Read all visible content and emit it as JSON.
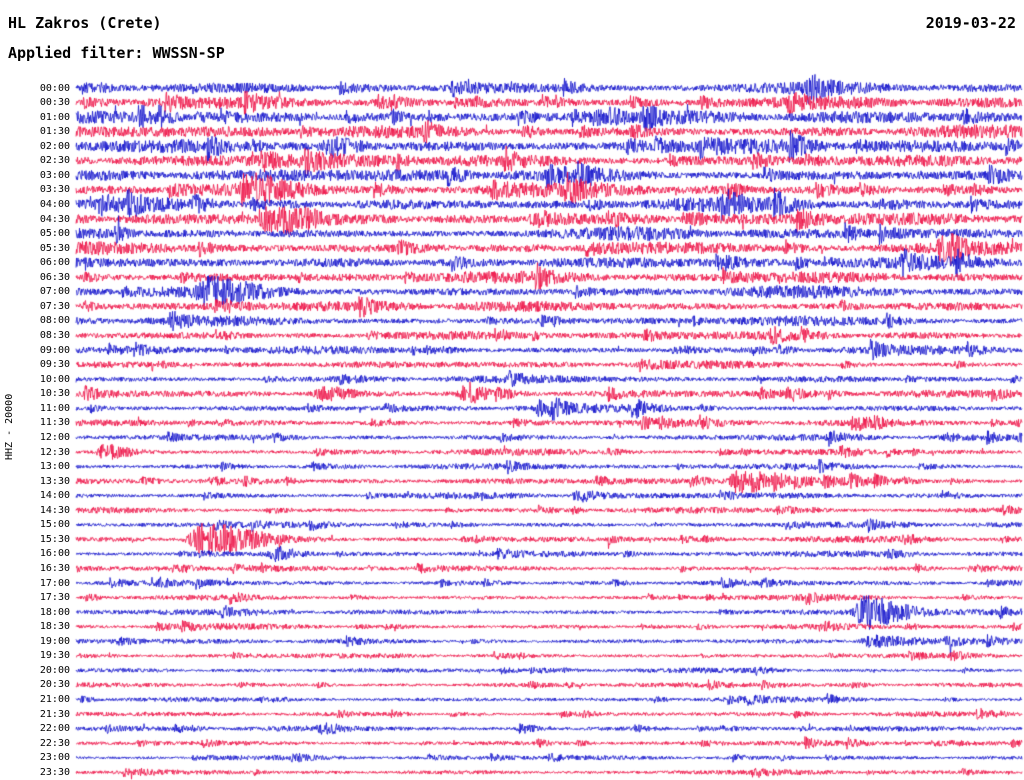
{
  "header": {
    "station": "HL Zakros (Crete)",
    "date": "2019-03-22",
    "filter_label": "Applied filter: WWSSN-SP"
  },
  "axis": {
    "channel_label": "HHZ - 20000"
  },
  "colors": {
    "blue": "#1212cc",
    "red": "#ee1045",
    "background": "#ffffff",
    "text": "#000000"
  },
  "chart_data": {
    "type": "line",
    "subtype": "helicorder-seismogram",
    "title": "HL Zakros (Crete)",
    "date": "2019-03-22",
    "filter": "WWSSN-SP",
    "ylabel": "HHZ - 20000",
    "minutes_per_line": 30,
    "lines": 48,
    "legend": "alternating blue/red traces, one 30-minute segment per line",
    "rows": [
      {
        "time": "00:00",
        "color": "blue",
        "amp": 6.0,
        "events": []
      },
      {
        "time": "00:30",
        "color": "red",
        "amp": 6.0,
        "events": []
      },
      {
        "time": "01:00",
        "color": "blue",
        "amp": 6.5,
        "events": []
      },
      {
        "time": "01:30",
        "color": "red",
        "amp": 6.5,
        "events": []
      },
      {
        "time": "02:00",
        "color": "blue",
        "amp": 7.0,
        "events": [
          [
            0.27,
            8,
            0.015
          ]
        ]
      },
      {
        "time": "02:30",
        "color": "red",
        "amp": 7.0,
        "events": []
      },
      {
        "time": "03:00",
        "color": "blue",
        "amp": 7.0,
        "events": []
      },
      {
        "time": "03:30",
        "color": "red",
        "amp": 7.2,
        "events": [
          [
            0.19,
            8,
            0.02
          ]
        ]
      },
      {
        "time": "04:00",
        "color": "blue",
        "amp": 7.0,
        "events": []
      },
      {
        "time": "04:30",
        "color": "red",
        "amp": 6.8,
        "events": [
          [
            0.2,
            9,
            0.02
          ]
        ]
      },
      {
        "time": "05:00",
        "color": "blue",
        "amp": 6.5,
        "events": []
      },
      {
        "time": "05:30",
        "color": "red",
        "amp": 6.5,
        "events": []
      },
      {
        "time": "06:00",
        "color": "blue",
        "amp": 6.0,
        "events": []
      },
      {
        "time": "06:30",
        "color": "red",
        "amp": 6.2,
        "events": []
      },
      {
        "time": "07:00",
        "color": "blue",
        "amp": 6.0,
        "events": [
          [
            0.14,
            10,
            0.025
          ]
        ]
      },
      {
        "time": "07:30",
        "color": "red",
        "amp": 5.5,
        "events": []
      },
      {
        "time": "08:00",
        "color": "blue",
        "amp": 5.0,
        "events": []
      },
      {
        "time": "08:30",
        "color": "red",
        "amp": 4.5,
        "events": []
      },
      {
        "time": "09:00",
        "color": "blue",
        "amp": 4.2,
        "events": []
      },
      {
        "time": "09:30",
        "color": "red",
        "amp": 4.0,
        "events": []
      },
      {
        "time": "10:00",
        "color": "blue",
        "amp": 3.8,
        "events": []
      },
      {
        "time": "10:30",
        "color": "red",
        "amp": 4.0,
        "events": [
          [
            0.26,
            6,
            0.015
          ],
          [
            0.41,
            6,
            0.012
          ]
        ]
      },
      {
        "time": "11:00",
        "color": "blue",
        "amp": 3.8,
        "events": [
          [
            0.49,
            6,
            0.012
          ]
        ]
      },
      {
        "time": "11:30",
        "color": "red",
        "amp": 3.5,
        "events": []
      },
      {
        "time": "12:00",
        "color": "blue",
        "amp": 3.2,
        "events": []
      },
      {
        "time": "12:30",
        "color": "red",
        "amp": 3.4,
        "events": [
          [
            0.03,
            7,
            0.015
          ]
        ]
      },
      {
        "time": "13:00",
        "color": "blue",
        "amp": 3.2,
        "events": []
      },
      {
        "time": "13:30",
        "color": "red",
        "amp": 3.4,
        "events": [
          [
            0.7,
            12,
            0.018
          ]
        ]
      },
      {
        "time": "14:00",
        "color": "blue",
        "amp": 3.4,
        "events": [
          [
            0.53,
            5,
            0.012
          ]
        ]
      },
      {
        "time": "14:30",
        "color": "red",
        "amp": 3.0,
        "events": []
      },
      {
        "time": "15:00",
        "color": "blue",
        "amp": 3.0,
        "events": []
      },
      {
        "time": "15:30",
        "color": "red",
        "amp": 3.2,
        "events": [
          [
            0.135,
            15,
            0.03
          ]
        ]
      },
      {
        "time": "16:00",
        "color": "blue",
        "amp": 3.2,
        "events": [
          [
            0.21,
            6,
            0.012
          ]
        ]
      },
      {
        "time": "16:30",
        "color": "red",
        "amp": 2.8,
        "events": []
      },
      {
        "time": "17:00",
        "color": "blue",
        "amp": 2.8,
        "events": []
      },
      {
        "time": "17:30",
        "color": "red",
        "amp": 2.8,
        "events": []
      },
      {
        "time": "18:00",
        "color": "blue",
        "amp": 3.0,
        "events": [
          [
            0.835,
            17,
            0.022
          ]
        ]
      },
      {
        "time": "18:30",
        "color": "red",
        "amp": 2.8,
        "events": []
      },
      {
        "time": "19:00",
        "color": "blue",
        "amp": 2.8,
        "events": [
          [
            0.84,
            5,
            0.02
          ]
        ]
      },
      {
        "time": "19:30",
        "color": "red",
        "amp": 2.6,
        "events": []
      },
      {
        "time": "20:00",
        "color": "blue",
        "amp": 2.6,
        "events": []
      },
      {
        "time": "20:30",
        "color": "red",
        "amp": 2.6,
        "events": []
      },
      {
        "time": "21:00",
        "color": "blue",
        "amp": 2.6,
        "events": []
      },
      {
        "time": "21:30",
        "color": "red",
        "amp": 2.5,
        "events": []
      },
      {
        "time": "22:00",
        "color": "blue",
        "amp": 2.8,
        "events": [
          [
            0.26,
            4,
            0.01
          ],
          [
            0.47,
            4,
            0.01
          ]
        ]
      },
      {
        "time": "22:30",
        "color": "red",
        "amp": 2.5,
        "events": []
      },
      {
        "time": "23:00",
        "color": "blue",
        "amp": 2.5,
        "events": []
      },
      {
        "time": "23:30",
        "color": "red",
        "amp": 2.5,
        "events": []
      }
    ]
  }
}
